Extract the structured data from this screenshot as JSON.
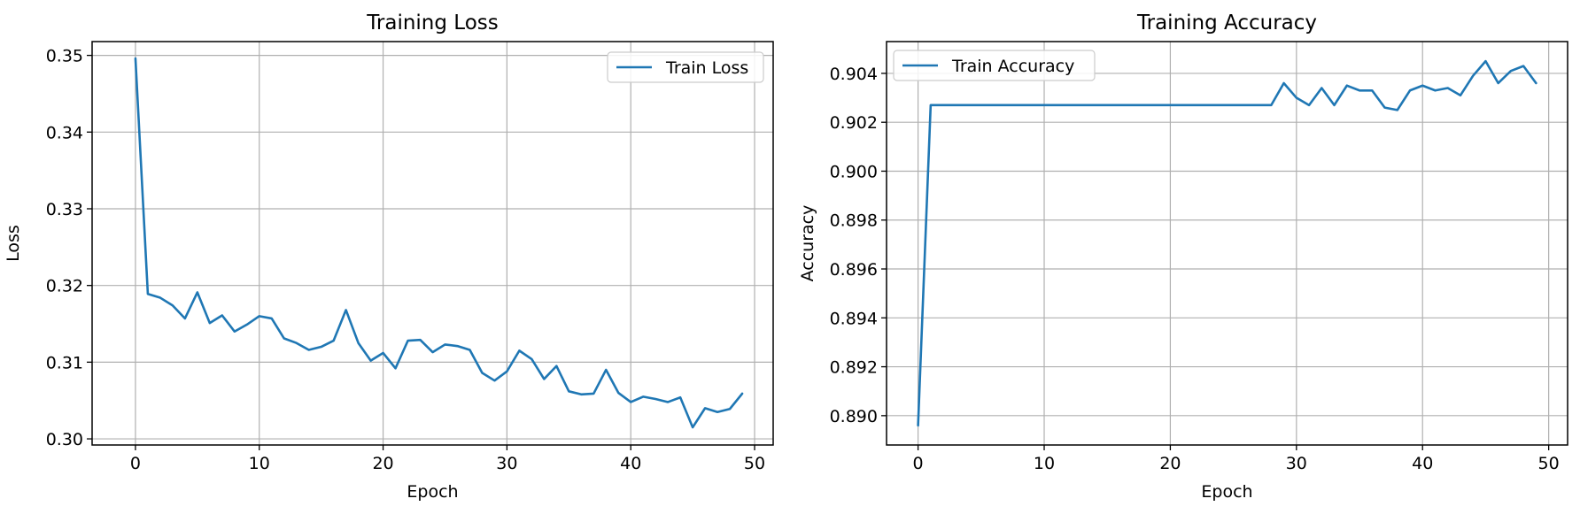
{
  "chart_data": [
    {
      "type": "line",
      "title": "Training Loss",
      "xlabel": "Epoch",
      "ylabel": "Loss",
      "xlim": [
        -3.5,
        51.5
      ],
      "ylim": [
        0.2992,
        0.3518
      ],
      "xticks": [
        0,
        10,
        20,
        30,
        40,
        50
      ],
      "yticks": [
        0.3,
        0.31,
        0.32,
        0.33,
        0.34,
        0.35
      ],
      "ytick_labels": [
        "0.30",
        "0.31",
        "0.32",
        "0.33",
        "0.34",
        "0.35"
      ],
      "grid": true,
      "legend_position": "top-right",
      "series": [
        {
          "name": "Train Loss",
          "color": "#1f77b4",
          "x": [
            0,
            1,
            2,
            3,
            4,
            5,
            6,
            7,
            8,
            9,
            10,
            11,
            12,
            13,
            14,
            15,
            16,
            17,
            18,
            19,
            20,
            21,
            22,
            23,
            24,
            25,
            26,
            27,
            28,
            29,
            30,
            31,
            32,
            33,
            34,
            35,
            36,
            37,
            38,
            39,
            40,
            41,
            42,
            43,
            44,
            45,
            46,
            47,
            48,
            49
          ],
          "values": [
            0.3496,
            0.3189,
            0.3184,
            0.3174,
            0.3157,
            0.3191,
            0.3151,
            0.3161,
            0.314,
            0.3149,
            0.316,
            0.3157,
            0.3131,
            0.3125,
            0.3116,
            0.312,
            0.3128,
            0.3168,
            0.3125,
            0.3102,
            0.3112,
            0.3092,
            0.3128,
            0.3129,
            0.3113,
            0.3123,
            0.3121,
            0.3116,
            0.3086,
            0.3076,
            0.3088,
            0.3115,
            0.3104,
            0.3078,
            0.3095,
            0.3062,
            0.3058,
            0.3059,
            0.309,
            0.306,
            0.3048,
            0.3055,
            0.3052,
            0.3048,
            0.3054,
            0.3015,
            0.304,
            0.3035,
            0.3039,
            0.3059
          ]
        }
      ]
    },
    {
      "type": "line",
      "title": "Training Accuracy",
      "xlabel": "Epoch",
      "ylabel": "Accuracy",
      "xlim": [
        -2.5,
        51.5
      ],
      "ylim": [
        0.8888,
        0.9053
      ],
      "xticks": [
        0,
        10,
        20,
        30,
        40,
        50
      ],
      "yticks": [
        0.89,
        0.892,
        0.894,
        0.896,
        0.898,
        0.9,
        0.902,
        0.904
      ],
      "ytick_labels": [
        "0.890",
        "0.892",
        "0.894",
        "0.896",
        "0.898",
        "0.900",
        "0.902",
        "0.904"
      ],
      "grid": true,
      "legend_position": "top-left",
      "series": [
        {
          "name": "Train Accuracy",
          "color": "#1f77b4",
          "x": [
            0,
            1,
            2,
            3,
            4,
            5,
            6,
            7,
            8,
            9,
            10,
            11,
            12,
            13,
            14,
            15,
            16,
            17,
            18,
            19,
            20,
            21,
            22,
            23,
            24,
            25,
            26,
            27,
            28,
            29,
            30,
            31,
            32,
            33,
            34,
            35,
            36,
            37,
            38,
            39,
            40,
            41,
            42,
            43,
            44,
            45,
            46,
            47,
            48,
            49
          ],
          "values": [
            0.8896,
            0.9027,
            0.9027,
            0.9027,
            0.9027,
            0.9027,
            0.9027,
            0.9027,
            0.9027,
            0.9027,
            0.9027,
            0.9027,
            0.9027,
            0.9027,
            0.9027,
            0.9027,
            0.9027,
            0.9027,
            0.9027,
            0.9027,
            0.9027,
            0.9027,
            0.9027,
            0.9027,
            0.9027,
            0.9027,
            0.9027,
            0.9027,
            0.9027,
            0.9036,
            0.903,
            0.9027,
            0.9034,
            0.9027,
            0.9035,
            0.9033,
            0.9033,
            0.9026,
            0.9025,
            0.9033,
            0.9035,
            0.9033,
            0.9034,
            0.9031,
            0.9039,
            0.9045,
            0.9036,
            0.9041,
            0.9043,
            0.9036
          ]
        }
      ]
    }
  ]
}
